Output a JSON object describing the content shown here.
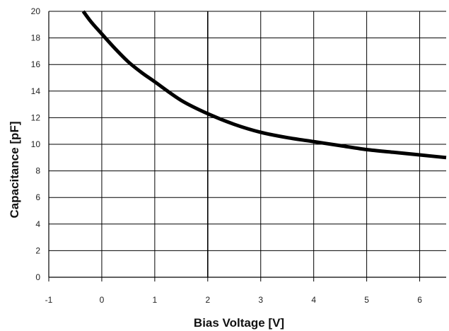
{
  "chart_data": {
    "type": "line",
    "title": "",
    "xlabel": "Bias Voltage [V]",
    "ylabel": "Capacitance [pF]",
    "xlim": [
      -1,
      6.5
    ],
    "ylim": [
      0,
      20
    ],
    "x_ticks": [
      -1,
      0,
      1,
      2,
      3,
      4,
      5,
      6
    ],
    "y_ticks": [
      0,
      2,
      4,
      6,
      8,
      10,
      12,
      14,
      16,
      18,
      20
    ],
    "x_tick_labels": [
      "-1",
      "0",
      "1",
      "2",
      "3",
      "4",
      "5",
      "6"
    ],
    "y_tick_labels": [
      "0",
      "2",
      "4",
      "6",
      "8",
      "10",
      "12",
      "14",
      "16",
      "18",
      "20"
    ],
    "grid": true,
    "legend": "none",
    "series": [
      {
        "x": [
          -0.35,
          -0.2,
          0.0,
          0.25,
          0.5,
          0.75,
          1.0,
          1.5,
          2.0,
          2.5,
          3.0,
          3.5,
          4.0,
          4.5,
          5.0,
          5.5,
          6.0,
          6.5
        ],
        "y": [
          20.0,
          19.2,
          18.3,
          17.2,
          16.2,
          15.4,
          14.7,
          13.3,
          12.3,
          11.5,
          10.9,
          10.5,
          10.2,
          9.9,
          9.6,
          9.4,
          9.2,
          9.0
        ],
        "color": "#000000"
      }
    ]
  }
}
